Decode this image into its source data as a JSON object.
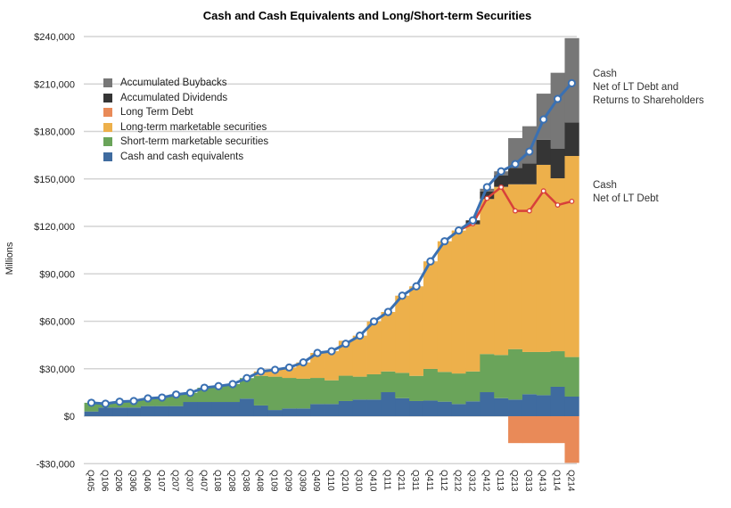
{
  "chart_data": {
    "type": "bar",
    "stacked": true,
    "title": "Cash and Cash Equivalents and Long/Short-term Securities",
    "ylabel": "Millions",
    "xlabel": "",
    "ylim": [
      -30000,
      240000
    ],
    "yticks": [
      -30000,
      0,
      30000,
      60000,
      90000,
      120000,
      150000,
      180000,
      210000,
      240000
    ],
    "ytick_labels": [
      "-$30,000",
      "$0",
      "$30,000",
      "$60,000",
      "$90,000",
      "$120,000",
      "$150,000",
      "$180,000",
      "$210,000",
      "$240,000"
    ],
    "grid": true,
    "legend_position": "top-left",
    "categories": [
      "Q405",
      "Q106",
      "Q206",
      "Q306",
      "Q406",
      "Q107",
      "Q207",
      "Q307",
      "Q407",
      "Q108",
      "Q208",
      "Q308",
      "Q408",
      "Q109",
      "Q209",
      "Q309",
      "Q409",
      "Q110",
      "Q210",
      "Q310",
      "Q410",
      "Q111",
      "Q211",
      "Q311",
      "Q411",
      "Q112",
      "Q212",
      "Q312",
      "Q412",
      "Q113",
      "Q213",
      "Q313",
      "Q413",
      "Q114",
      "Q214"
    ],
    "series": [
      {
        "name": "Cash and cash equivalents",
        "color": "#3f6b9f",
        "values": [
          3000,
          5500,
          5500,
          5500,
          6400,
          6400,
          6400,
          9000,
          9000,
          9000,
          9000,
          11100,
          6800,
          3900,
          4900,
          4900,
          7700,
          7700,
          9600,
          10500,
          10500,
          15200,
          11400,
          9600,
          9900,
          9200,
          7700,
          9400,
          15200,
          11400,
          10500,
          13900,
          13300,
          18600,
          12400
        ]
      },
      {
        "name": "Short-term marketable securities",
        "color": "#6aa45a",
        "values": [
          5500,
          2400,
          3700,
          4100,
          4900,
          5400,
          7300,
          5800,
          9000,
          10000,
          11300,
          13000,
          18700,
          21100,
          19300,
          18800,
          16500,
          15000,
          16000,
          14500,
          16000,
          13100,
          16000,
          15900,
          20000,
          18800,
          19300,
          18900,
          24100,
          27300,
          31900,
          26700,
          27300,
          22500,
          25000
        ]
      },
      {
        "name": "Long-term marketable securities",
        "color": "#edb04b",
        "values": [
          0,
          0,
          0,
          0,
          0,
          0,
          0,
          0,
          0,
          0,
          0,
          0,
          2800,
          4300,
          6600,
          10300,
          15800,
          18400,
          22100,
          25900,
          33400,
          37600,
          48800,
          56600,
          68000,
          82600,
          90400,
          93000,
          98000,
          106300,
          104200,
          106000,
          118300,
          109300,
          127100
        ]
      },
      {
        "name": "Long Term Debt",
        "color": "#e98a58",
        "values": [
          0,
          0,
          0,
          0,
          0,
          0,
          0,
          0,
          0,
          0,
          0,
          0,
          0,
          0,
          0,
          0,
          0,
          0,
          0,
          0,
          0,
          0,
          0,
          0,
          0,
          0,
          0,
          0,
          0,
          0,
          -17000,
          -17000,
          -17000,
          -17000,
          -29500
        ]
      },
      {
        "name": "Accumulated Dividends",
        "color": "#353535",
        "values": [
          0,
          0,
          0,
          0,
          0,
          0,
          0,
          0,
          0,
          0,
          0,
          0,
          0,
          0,
          0,
          0,
          0,
          0,
          0,
          0,
          0,
          0,
          0,
          0,
          0,
          0,
          0,
          2500,
          4700,
          7300,
          10400,
          13200,
          15900,
          18800,
          21200
        ]
      },
      {
        "name": "Accumulated Buybacks",
        "color": "#777777",
        "values": [
          0,
          0,
          0,
          0,
          0,
          0,
          0,
          0,
          0,
          0,
          0,
          0,
          0,
          0,
          0,
          0,
          0,
          0,
          0,
          0,
          0,
          0,
          0,
          0,
          0,
          0,
          0,
          0,
          1800,
          2500,
          18800,
          23500,
          29100,
          47900,
          53300
        ]
      }
    ],
    "lines": [
      {
        "name": "Cash Net of LT Debt and Returns to Shareholders",
        "label_lines": [
          "Cash",
          "Net of LT Debt and",
          "Returns to Shareholders"
        ],
        "color": "#3a70b2",
        "values": [
          8500,
          7900,
          9200,
          9600,
          11300,
          11800,
          13700,
          14800,
          18000,
          19000,
          20300,
          24100,
          28300,
          29300,
          30800,
          34000,
          40000,
          41100,
          45800,
          50900,
          59900,
          65900,
          76200,
          82100,
          97900,
          110600,
          117400,
          123800,
          144800,
          154800,
          159400,
          167300,
          187600,
          200600,
          210500
        ]
      },
      {
        "name": "Cash Net of LT Debt",
        "label_lines": [
          "Cash",
          "Net of LT Debt"
        ],
        "color": "#d8403a",
        "values": [
          null,
          null,
          null,
          null,
          null,
          null,
          null,
          null,
          null,
          null,
          null,
          null,
          null,
          null,
          null,
          null,
          null,
          null,
          null,
          null,
          null,
          null,
          null,
          null,
          null,
          null,
          117400,
          121700,
          137700,
          144800,
          129800,
          129800,
          142400,
          133500,
          135800
        ]
      }
    ],
    "legend_order": [
      "Accumulated Buybacks",
      "Accumulated Dividends",
      "Long Term Debt",
      "Long-term marketable securities",
      "Short-term marketable securities",
      "Cash and cash equivalents"
    ]
  }
}
